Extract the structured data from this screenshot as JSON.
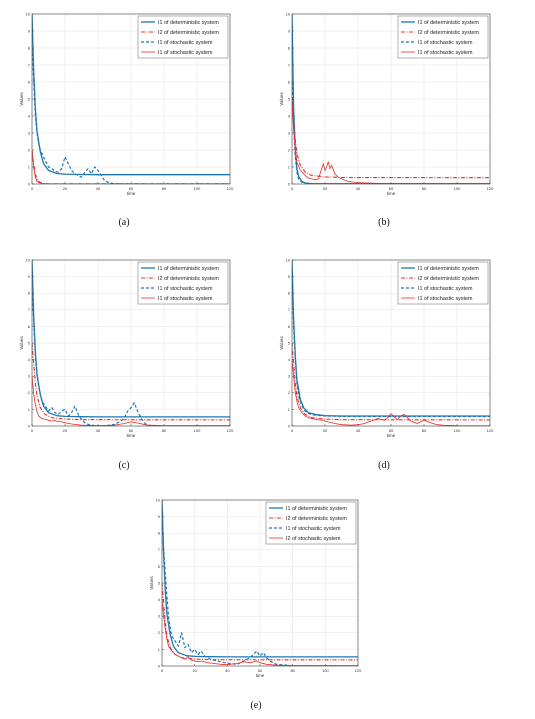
{
  "figure": {
    "panel_labels": [
      "(a)",
      "(b)",
      "(c)",
      "(d)",
      "(e)"
    ]
  },
  "colors": {
    "deterministic_I1": "#1f77b4",
    "deterministic_I2": "#e4312b",
    "stochastic_I1": "#1f77b4",
    "stochastic_I2": "#e4312b"
  },
  "chart_data": [
    {
      "panel": "(a)",
      "type": "line",
      "xlabel": "time",
      "ylabel": "Values",
      "xlim": [
        0,
        120
      ],
      "ylim": [
        0,
        10
      ],
      "xticks": [
        0,
        20,
        40,
        60,
        80,
        100,
        120
      ],
      "yticks": [
        0,
        1,
        2,
        3,
        4,
        5,
        6,
        7,
        8,
        9,
        10
      ],
      "grid": true,
      "legend_position": "top-right",
      "series": [
        {
          "name": "I1 of deterministic system",
          "style": "solid",
          "color": "#1f77b4",
          "x": [
            0,
            1,
            2,
            3,
            5,
            7,
            10,
            15,
            20,
            30,
            40,
            120
          ],
          "y": [
            10,
            6.8,
            4.5,
            3.1,
            1.9,
            1.2,
            0.8,
            0.62,
            0.58,
            0.56,
            0.55,
            0.55
          ]
        },
        {
          "name": "I2 of deterministic system",
          "style": "dashdot",
          "color": "#e4312b",
          "x": [
            0,
            1,
            2,
            3,
            4,
            6,
            8,
            12,
            120
          ],
          "y": [
            2,
            1.2,
            0.6,
            0.3,
            0.15,
            0.05,
            0.02,
            0.01,
            0.01
          ]
        },
        {
          "name": "I1 of stochastic system",
          "style": "dashed",
          "color": "#1f77b4",
          "x": [
            0,
            1,
            2,
            3,
            4,
            5,
            6,
            8,
            10,
            12,
            14,
            16,
            18,
            20,
            22,
            24,
            26,
            28,
            30,
            32,
            34,
            36,
            38,
            40,
            42,
            44,
            46,
            48,
            50,
            60,
            120
          ],
          "y": [
            8,
            6.2,
            4.1,
            3.0,
            2.4,
            2.0,
            1.8,
            1.4,
            1.0,
            0.9,
            0.75,
            0.7,
            0.9,
            1.6,
            1.2,
            0.8,
            0.6,
            0.5,
            0.4,
            0.7,
            0.9,
            0.6,
            1.0,
            0.8,
            0.5,
            0.2,
            0.1,
            0.05,
            0.02,
            0.0,
            0.0
          ]
        },
        {
          "name": "I1 of stochastic system",
          "style": "solid-thin",
          "color": "#e4312b",
          "x": [
            0,
            1,
            2,
            3,
            4,
            6,
            8,
            10,
            120
          ],
          "y": [
            2,
            1.0,
            0.4,
            0.15,
            0.08,
            0.03,
            0.01,
            0.0,
            0.0
          ]
        }
      ]
    },
    {
      "panel": "(b)",
      "type": "line",
      "xlabel": "time",
      "ylabel": "Values",
      "xlim": [
        0,
        120
      ],
      "ylim": [
        0,
        10
      ],
      "xticks": [
        0,
        20,
        40,
        60,
        80,
        100,
        120
      ],
      "yticks": [
        0,
        1,
        2,
        3,
        4,
        5,
        6,
        7,
        8,
        9,
        10
      ],
      "grid": true,
      "legend_position": "top-right",
      "series": [
        {
          "name": "I1 of deterministic system",
          "style": "solid",
          "color": "#1f77b4",
          "x": [
            0,
            1,
            2,
            3,
            4,
            6,
            8,
            12,
            20,
            120
          ],
          "y": [
            10,
            4.5,
            2.0,
            0.9,
            0.45,
            0.15,
            0.06,
            0.02,
            0.01,
            0.01
          ]
        },
        {
          "name": "I2 of deterministic system",
          "style": "dashdot",
          "color": "#e4312b",
          "x": [
            0,
            1,
            2,
            3,
            5,
            8,
            12,
            20,
            30,
            120
          ],
          "y": [
            5,
            3.8,
            2.6,
            1.8,
            1.1,
            0.7,
            0.5,
            0.42,
            0.38,
            0.37
          ]
        },
        {
          "name": "I1 of stochastic system",
          "style": "dashed",
          "color": "#1f77b4",
          "x": [
            0,
            1,
            2,
            3,
            4,
            6,
            8,
            12,
            120
          ],
          "y": [
            6,
            3.5,
            1.6,
            0.7,
            0.3,
            0.1,
            0.04,
            0.01,
            0.0
          ]
        },
        {
          "name": "I1 of stochastic system",
          "style": "solid-thin",
          "color": "#e4312b",
          "x": [
            0,
            1,
            2,
            3,
            5,
            8,
            10,
            12,
            14,
            16,
            18,
            19,
            20,
            21,
            22,
            23,
            24,
            26,
            28,
            30,
            34,
            40,
            50,
            60,
            120
          ],
          "y": [
            5,
            3.2,
            2.1,
            1.3,
            0.8,
            0.5,
            0.35,
            0.3,
            0.25,
            0.3,
            0.9,
            1.2,
            0.8,
            1.0,
            1.3,
            0.9,
            1.1,
            0.6,
            0.4,
            0.3,
            0.15,
            0.08,
            0.04,
            0.02,
            0.02
          ]
        }
      ]
    },
    {
      "panel": "(c)",
      "type": "line",
      "xlabel": "time",
      "ylabel": "Values",
      "xlim": [
        0,
        120
      ],
      "ylim": [
        0,
        10
      ],
      "xticks": [
        0,
        20,
        40,
        60,
        80,
        100,
        120
      ],
      "yticks": [
        0,
        1,
        2,
        3,
        4,
        5,
        6,
        7,
        8,
        9,
        10
      ],
      "grid": true,
      "legend_position": "top-right",
      "series": [
        {
          "name": "I1 of deterministic system",
          "style": "solid",
          "color": "#1f77b4",
          "x": [
            0,
            1,
            2,
            3,
            5,
            7,
            10,
            15,
            20,
            30,
            40,
            120
          ],
          "y": [
            10,
            6.8,
            4.5,
            3.1,
            1.9,
            1.2,
            0.8,
            0.62,
            0.58,
            0.56,
            0.55,
            0.55
          ]
        },
        {
          "name": "I2 of deterministic system",
          "style": "dashdot",
          "color": "#e4312b",
          "x": [
            0,
            1,
            2,
            3,
            5,
            8,
            12,
            20,
            30,
            120
          ],
          "y": [
            5,
            3.8,
            2.6,
            1.8,
            1.1,
            0.7,
            0.5,
            0.42,
            0.38,
            0.37
          ]
        },
        {
          "name": "I1 of stochastic system",
          "style": "dashed",
          "color": "#1f77b4",
          "x": [
            0,
            1,
            2,
            3,
            4,
            5,
            6,
            8,
            10,
            12,
            14,
            16,
            18,
            20,
            22,
            24,
            26,
            28,
            30,
            32,
            34,
            36,
            40,
            44,
            50,
            54,
            56,
            58,
            60,
            62,
            64,
            66,
            68,
            70,
            80,
            120
          ],
          "y": [
            8,
            6.5,
            4.2,
            3.1,
            2.4,
            1.9,
            1.5,
            1.2,
            0.9,
            1.1,
            0.8,
            0.7,
            0.9,
            1.0,
            0.6,
            0.8,
            1.2,
            0.7,
            0.4,
            0.2,
            0.1,
            0.05,
            0.0,
            0.0,
            0.1,
            0.3,
            0.5,
            0.9,
            1.1,
            1.4,
            0.9,
            0.5,
            0.2,
            0.05,
            0.0,
            0.0
          ]
        },
        {
          "name": "I1 of stochastic system",
          "style": "solid-thin",
          "color": "#e4312b",
          "x": [
            0,
            1,
            2,
            3,
            4,
            6,
            8,
            10,
            12,
            14,
            16,
            18,
            20,
            24,
            30,
            40,
            50,
            56,
            60,
            64,
            70,
            80,
            120
          ],
          "y": [
            3,
            2.0,
            1.3,
            0.9,
            0.6,
            0.45,
            0.4,
            0.35,
            0.3,
            0.32,
            0.28,
            0.25,
            0.2,
            0.12,
            0.05,
            0.02,
            0.05,
            0.15,
            0.25,
            0.18,
            0.05,
            0.02,
            0.02
          ]
        }
      ]
    },
    {
      "panel": "(d)",
      "type": "line",
      "xlabel": "time",
      "ylabel": "Values",
      "xlim": [
        0,
        120
      ],
      "ylim": [
        0,
        10
      ],
      "xticks": [
        0,
        20,
        40,
        60,
        80,
        100,
        120
      ],
      "yticks": [
        0,
        1,
        2,
        3,
        4,
        5,
        6,
        7,
        8,
        9,
        10
      ],
      "grid": true,
      "legend_position": "top-right",
      "series": [
        {
          "name": "I1 of deterministic system",
          "style": "solid",
          "color": "#1f77b4",
          "x": [
            0,
            1,
            2,
            3,
            5,
            7,
            10,
            15,
            20,
            30,
            40,
            120
          ],
          "y": [
            10,
            6.5,
            4.2,
            2.8,
            1.6,
            1.1,
            0.8,
            0.68,
            0.62,
            0.6,
            0.6,
            0.6
          ]
        },
        {
          "name": "I2 of deterministic system",
          "style": "dashdot",
          "color": "#e4312b",
          "x": [
            0,
            1,
            2,
            3,
            5,
            8,
            12,
            20,
            30,
            120
          ],
          "y": [
            5,
            3.8,
            2.6,
            1.8,
            1.1,
            0.7,
            0.5,
            0.42,
            0.38,
            0.37
          ]
        },
        {
          "name": "I1 of stochastic system",
          "style": "dashed",
          "color": "#1f77b4",
          "x": [
            0,
            1,
            2,
            3,
            4,
            6,
            8,
            10,
            14,
            20,
            30,
            40,
            120
          ],
          "y": [
            9,
            6.0,
            4.0,
            2.6,
            1.8,
            1.2,
            0.9,
            0.75,
            0.65,
            0.6,
            0.58,
            0.57,
            0.57
          ]
        },
        {
          "name": "I1 of stochastic system",
          "style": "solid-thin",
          "color": "#e4312b",
          "x": [
            0,
            1,
            2,
            3,
            4,
            6,
            8,
            10,
            12,
            14,
            18,
            22,
            26,
            30,
            36,
            40,
            44,
            48,
            52,
            56,
            58,
            60,
            62,
            64,
            66,
            68,
            70,
            72,
            76,
            80,
            84,
            88,
            92,
            100,
            120
          ],
          "y": [
            4,
            3.0,
            2.0,
            1.5,
            1.1,
            0.8,
            0.6,
            0.5,
            0.45,
            0.4,
            0.35,
            0.25,
            0.15,
            0.08,
            0.05,
            0.08,
            0.15,
            0.3,
            0.45,
            0.35,
            0.5,
            0.75,
            0.55,
            0.4,
            0.6,
            0.7,
            0.5,
            0.3,
            0.15,
            0.35,
            0.2,
            0.08,
            0.04,
            0.02,
            0.01
          ]
        }
      ]
    },
    {
      "panel": "(e)",
      "type": "line",
      "xlabel": "time",
      "ylabel": "Values",
      "xlim": [
        0,
        120
      ],
      "ylim": [
        0,
        10
      ],
      "xticks": [
        0,
        20,
        40,
        60,
        80,
        100,
        120
      ],
      "yticks": [
        0,
        1,
        2,
        3,
        4,
        5,
        6,
        7,
        8,
        9,
        10
      ],
      "grid": true,
      "legend_position": "top-right",
      "series": [
        {
          "name": "I1 of deterministic system",
          "style": "solid",
          "color": "#1f77b4",
          "x": [
            0,
            1,
            2,
            3,
            5,
            7,
            10,
            15,
            20,
            30,
            40,
            120
          ],
          "y": [
            10,
            6.8,
            4.5,
            3.1,
            1.9,
            1.2,
            0.8,
            0.62,
            0.58,
            0.56,
            0.55,
            0.55
          ]
        },
        {
          "name": "I2 of deterministic system",
          "style": "dashdot",
          "color": "#e4312b",
          "x": [
            0,
            1,
            2,
            3,
            5,
            8,
            12,
            20,
            30,
            120
          ],
          "y": [
            5,
            3.8,
            2.6,
            1.8,
            1.1,
            0.7,
            0.5,
            0.42,
            0.38,
            0.37
          ]
        },
        {
          "name": "I1 of stochastic system",
          "style": "dashed",
          "color": "#1f77b4",
          "x": [
            0,
            1,
            2,
            3,
            4,
            5,
            6,
            8,
            10,
            12,
            14,
            16,
            18,
            20,
            22,
            24,
            26,
            28,
            30,
            34,
            38,
            42,
            46,
            50,
            54,
            56,
            58,
            60,
            62,
            64,
            66,
            70,
            80,
            120
          ],
          "y": [
            9,
            7.2,
            5.5,
            4.2,
            3.0,
            2.3,
            1.8,
            1.5,
            1.2,
            2.0,
            1.1,
            1.3,
            0.8,
            1.0,
            0.7,
            0.9,
            0.6,
            0.5,
            0.4,
            0.3,
            0.2,
            0.15,
            0.1,
            0.3,
            0.5,
            0.7,
            0.9,
            0.6,
            0.8,
            0.5,
            0.3,
            0.1,
            0.02,
            0.0
          ]
        },
        {
          "name": "I2 of stochastic system",
          "style": "solid-thin",
          "color": "#e4312b",
          "x": [
            0,
            1,
            2,
            3,
            4,
            6,
            8,
            10,
            12,
            14,
            16,
            18,
            20,
            22,
            24,
            28,
            32,
            36,
            40,
            46,
            50,
            54,
            58,
            60,
            64,
            70,
            80,
            120
          ],
          "y": [
            4,
            3.0,
            2.2,
            1.6,
            1.2,
            0.9,
            0.7,
            0.6,
            0.5,
            0.4,
            0.55,
            0.35,
            0.3,
            0.25,
            0.3,
            0.2,
            0.15,
            0.1,
            0.08,
            0.15,
            0.25,
            0.2,
            0.3,
            0.2,
            0.1,
            0.05,
            0.02,
            0.02
          ]
        }
      ]
    }
  ]
}
